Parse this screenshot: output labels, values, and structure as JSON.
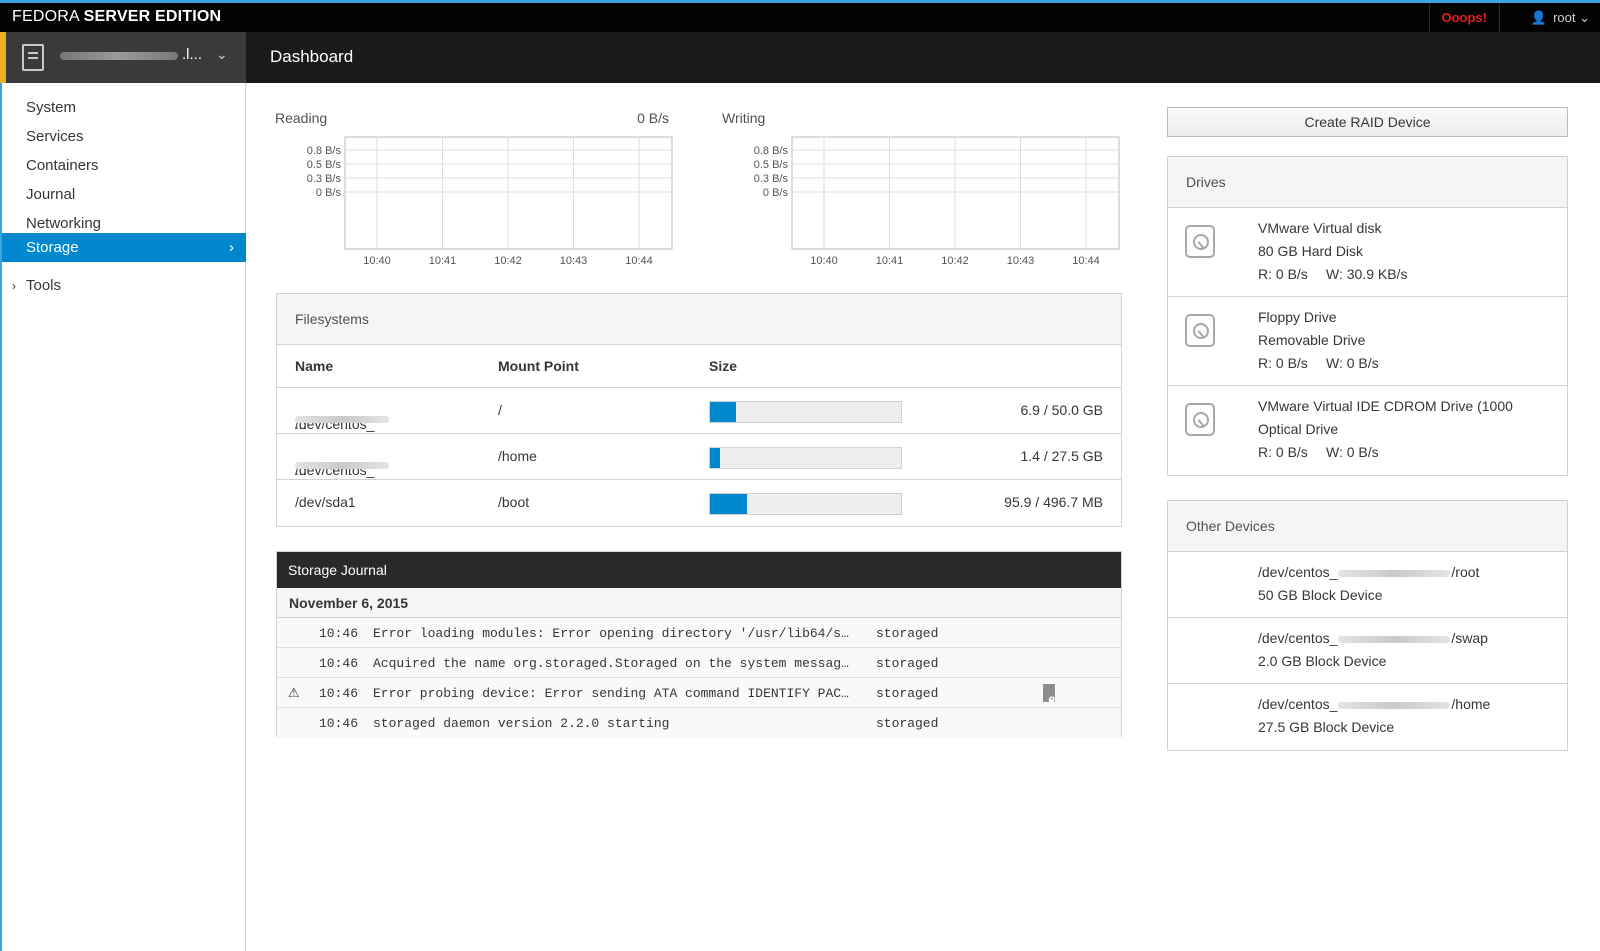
{
  "brand": {
    "light": "FEDORA",
    "bold": "SERVER EDITION"
  },
  "topbar": {
    "alert": "Ooops!",
    "user": "root",
    "user_icon": "user-icon"
  },
  "host": {
    "name_tail": ".l...",
    "icon": "server-icon"
  },
  "header": {
    "title": "Dashboard"
  },
  "sidebar": {
    "items": [
      {
        "label": "System"
      },
      {
        "label": "Services"
      },
      {
        "label": "Containers"
      },
      {
        "label": "Journal"
      },
      {
        "label": "Networking"
      },
      {
        "label": "Storage",
        "active": true
      }
    ],
    "tools_label": "Tools"
  },
  "charts": [
    {
      "label": "Reading",
      "value": "0 B/s",
      "chart_data": {
        "type": "line",
        "x": [
          "10:40",
          "10:41",
          "10:42",
          "10:43",
          "10:44"
        ],
        "y_ticks": [
          "0.8 B/s",
          "0.5 B/s",
          "0.3 B/s",
          "0 B/s"
        ],
        "series": [
          {
            "values": [
              0,
              0,
              0,
              0,
              0
            ]
          }
        ],
        "grid": true
      }
    },
    {
      "label": "Writing",
      "value": "",
      "chart_data": {
        "type": "line",
        "x": [
          "10:40",
          "10:41",
          "10:42",
          "10:43",
          "10:44"
        ],
        "y_ticks": [
          "0.8 B/s",
          "0.5 B/s",
          "0.3 B/s",
          "0 B/s"
        ],
        "series": [
          {
            "values": [
              0,
              0,
              0,
              0,
              0
            ]
          }
        ],
        "grid": true
      }
    }
  ],
  "filesystems": {
    "title": "Filesystems",
    "columns": {
      "name": "Name",
      "mount": "Mount Point",
      "size": "Size"
    },
    "rows": [
      {
        "name_prefix": "/dev/centos_",
        "name_suffix": "...",
        "mount": "/",
        "usage_fraction": 0.138,
        "size": "6.9 / 50.0 GB"
      },
      {
        "name_prefix": "/dev/centos_",
        "name_suffix": "...",
        "mount": "/home",
        "usage_fraction": 0.051,
        "size": "1.4 / 27.5 GB"
      },
      {
        "name_prefix": "/dev/sda1",
        "name_suffix": "",
        "mount": "/boot",
        "usage_fraction": 0.193,
        "size": "95.9 / 496.7 MB"
      }
    ],
    "bar_color": "#0088ce"
  },
  "journal": {
    "title": "Storage Journal",
    "date": "November 6, 2015",
    "entries": [
      {
        "time": "10:46",
        "message": "Error loading modules: Error opening directory '/usr/lib64/sto…",
        "source": "storaged",
        "warning": false,
        "count": ""
      },
      {
        "time": "10:46",
        "message": "Acquired the name org.storaged.Storaged on the system message …",
        "source": "storaged",
        "warning": false,
        "count": ""
      },
      {
        "time": "10:46",
        "message": "Error probing device: Error sending ATA command IDENTIFY PACKE…",
        "source": "storaged",
        "warning": true,
        "count": "2"
      },
      {
        "time": "10:46",
        "message": "storaged daemon version 2.2.0 starting",
        "source": "storaged",
        "warning": false,
        "count": ""
      }
    ]
  },
  "raid_button": "Create RAID Device",
  "drives": {
    "title": "Drives",
    "items": [
      {
        "name": "VMware Virtual disk",
        "type": "80 GB Hard Disk",
        "read": "R: 0 B/s",
        "write": "W: 30.9 KB/s"
      },
      {
        "name": "Floppy Drive",
        "type": "Removable Drive",
        "read": "R: 0 B/s",
        "write": "W: 0 B/s"
      },
      {
        "name": "VMware Virtual IDE CDROM Drive (1000",
        "type": "Optical Drive",
        "read": "R: 0 B/s",
        "write": "W: 0 B/s"
      }
    ]
  },
  "other_devices": {
    "title": "Other Devices",
    "items": [
      {
        "prefix": "/dev/centos_",
        "suffix": "/root",
        "desc": "50 GB Block Device"
      },
      {
        "prefix": "/dev/centos_",
        "suffix": "/swap",
        "desc": "2.0 GB Block Device"
      },
      {
        "prefix": "/dev/centos_",
        "suffix": "/home",
        "desc": "27.5 GB Block Device"
      }
    ]
  },
  "colors": {
    "accent": "#0088ce",
    "topbar_stripe": "#39a5dc",
    "host_marker": "#e8b21b",
    "alert": "#e0201a"
  }
}
